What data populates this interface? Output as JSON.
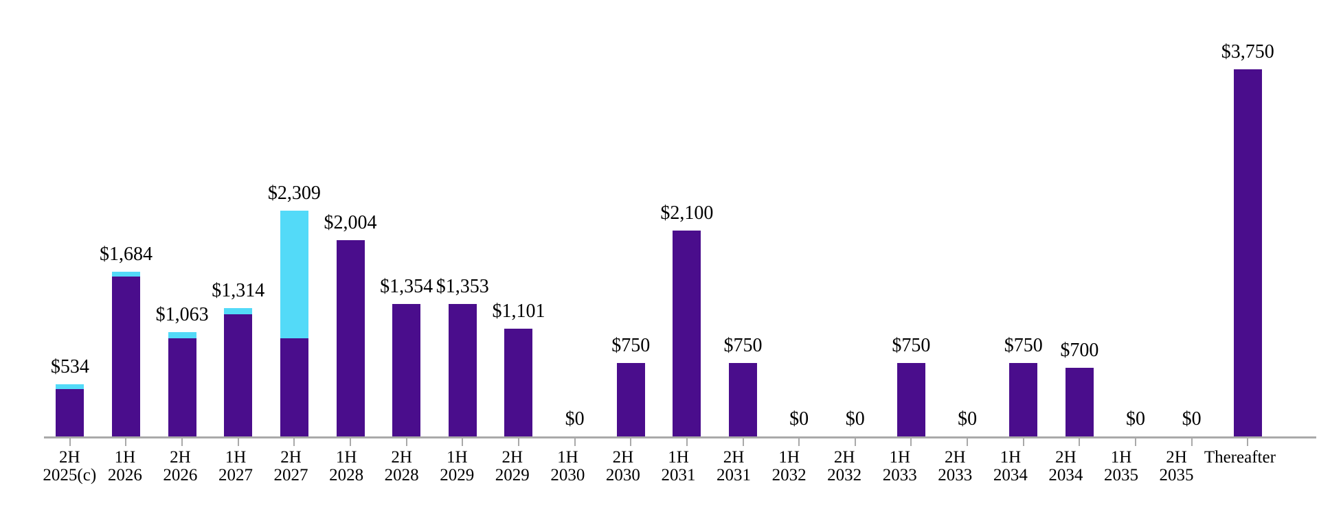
{
  "chart_data": {
    "type": "bar",
    "stacked": true,
    "title": "",
    "legend_position": "none",
    "grid": "off",
    "y_axis_visible": false,
    "x_axis_baseline": true,
    "categories": [
      [
        "2H",
        "2025(c)"
      ],
      [
        "1H",
        "2026"
      ],
      [
        "2H",
        "2026"
      ],
      [
        "1H",
        "2027"
      ],
      [
        "2H",
        "2027"
      ],
      [
        "1H",
        "2028"
      ],
      [
        "2H",
        "2028"
      ],
      [
        "1H",
        "2029"
      ],
      [
        "2H",
        "2029"
      ],
      [
        "1H",
        "2030"
      ],
      [
        "2H",
        "2030"
      ],
      [
        "1H",
        "2031"
      ],
      [
        "2H",
        "2031"
      ],
      [
        "1H",
        "2032"
      ],
      [
        "2H",
        "2032"
      ],
      [
        "1H",
        "2033"
      ],
      [
        "2H",
        "2033"
      ],
      [
        "1H",
        "2034"
      ],
      [
        "2H",
        "2034"
      ],
      [
        "1H",
        "2035"
      ],
      [
        "2H",
        "2035"
      ],
      [
        "Thereafter"
      ]
    ],
    "bar_labels": [
      "$534",
      "$1,684",
      "$1,063",
      "$1,314",
      "$2,309",
      "$2,004",
      "$1,354",
      "$1,353",
      "$1,101",
      "$0",
      "$750",
      "$2,100",
      "$750",
      "$0",
      "$0",
      "$750",
      "$0",
      "$750",
      "$700",
      "$0",
      "$0",
      "$3,750"
    ],
    "totals": [
      534,
      1684,
      1063,
      1314,
      2309,
      2004,
      1354,
      1353,
      1101,
      0,
      750,
      2100,
      750,
      0,
      0,
      750,
      0,
      750,
      700,
      0,
      0,
      3750
    ],
    "series": [
      {
        "name": "purple",
        "color": "#4A0D8C",
        "values": [
          485,
          1634,
          1000,
          1246,
          1000,
          2004,
          1354,
          1353,
          1101,
          0,
          750,
          2100,
          750,
          0,
          0,
          750,
          0,
          750,
          700,
          0,
          0,
          3750
        ]
      },
      {
        "name": "cyan",
        "color": "#53DAF8",
        "values": [
          49,
          50,
          63,
          68,
          1309,
          0,
          0,
          0,
          0,
          0,
          0,
          0,
          0,
          0,
          0,
          0,
          0,
          0,
          0,
          0,
          0,
          0
        ]
      }
    ],
    "ylim": [
      0,
      4000
    ],
    "axis_color": "#A9A9A9",
    "text_color": "#000000"
  }
}
